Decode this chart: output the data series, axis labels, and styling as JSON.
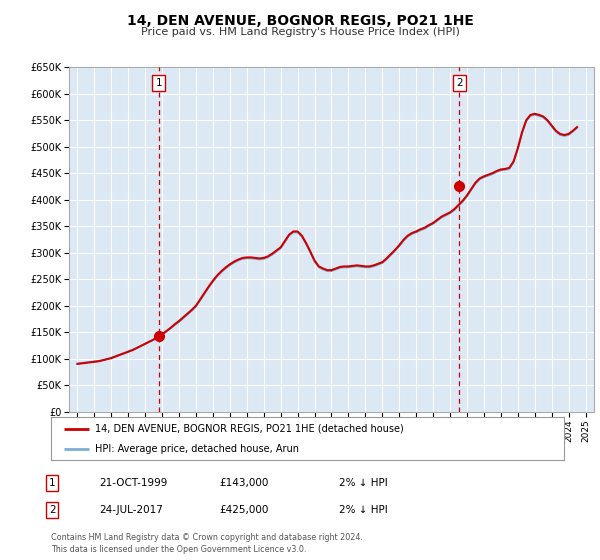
{
  "title": "14, DEN AVENUE, BOGNOR REGIS, PO21 1HE",
  "subtitle": "Price paid vs. HM Land Registry's House Price Index (HPI)",
  "ylim": [
    0,
    650000
  ],
  "xlim": [
    1994.5,
    2025.5
  ],
  "yticks": [
    0,
    50000,
    100000,
    150000,
    200000,
    250000,
    300000,
    350000,
    400000,
    450000,
    500000,
    550000,
    600000,
    650000
  ],
  "ytick_labels": [
    "£0",
    "£50K",
    "£100K",
    "£150K",
    "£200K",
    "£250K",
    "£300K",
    "£350K",
    "£400K",
    "£450K",
    "£500K",
    "£550K",
    "£600K",
    "£650K"
  ],
  "xticks": [
    1995,
    1996,
    1997,
    1998,
    1999,
    2000,
    2001,
    2002,
    2003,
    2004,
    2005,
    2006,
    2007,
    2008,
    2009,
    2010,
    2011,
    2012,
    2013,
    2014,
    2015,
    2016,
    2017,
    2018,
    2019,
    2020,
    2021,
    2022,
    2023,
    2024,
    2025
  ],
  "background_color": "#ffffff",
  "plot_bg_color": "#dce9f5",
  "grid_color": "#ffffff",
  "sale1": {
    "year": 1999.8,
    "price": 143000,
    "label": "1"
  },
  "sale2": {
    "year": 2017.55,
    "price": 425000,
    "label": "2"
  },
  "sale_color": "#cc0000",
  "sale_marker_size": 7,
  "hpi_color": "#7bafd4",
  "hpi_linewidth": 1.2,
  "price_color": "#cc0000",
  "price_linewidth": 1.5,
  "legend_label_price": "14, DEN AVENUE, BOGNOR REGIS, PO21 1HE (detached house)",
  "legend_label_hpi": "HPI: Average price, detached house, Arun",
  "annotation1_date": "21-OCT-1999",
  "annotation1_price": "£143,000",
  "annotation1_hpi": "2% ↓ HPI",
  "annotation2_date": "24-JUL-2017",
  "annotation2_price": "£425,000",
  "annotation2_hpi": "2% ↓ HPI",
  "footer": "Contains HM Land Registry data © Crown copyright and database right 2024.\nThis data is licensed under the Open Government Licence v3.0.",
  "hpi_data_x": [
    1995.0,
    1995.25,
    1995.5,
    1995.75,
    1996.0,
    1996.25,
    1996.5,
    1996.75,
    1997.0,
    1997.25,
    1997.5,
    1997.75,
    1998.0,
    1998.25,
    1998.5,
    1998.75,
    1999.0,
    1999.25,
    1999.5,
    1999.75,
    2000.0,
    2000.25,
    2000.5,
    2000.75,
    2001.0,
    2001.25,
    2001.5,
    2001.75,
    2002.0,
    2002.25,
    2002.5,
    2002.75,
    2003.0,
    2003.25,
    2003.5,
    2003.75,
    2004.0,
    2004.25,
    2004.5,
    2004.75,
    2005.0,
    2005.25,
    2005.5,
    2005.75,
    2006.0,
    2006.25,
    2006.5,
    2006.75,
    2007.0,
    2007.25,
    2007.5,
    2007.75,
    2008.0,
    2008.25,
    2008.5,
    2008.75,
    2009.0,
    2009.25,
    2009.5,
    2009.75,
    2010.0,
    2010.25,
    2010.5,
    2010.75,
    2011.0,
    2011.25,
    2011.5,
    2011.75,
    2012.0,
    2012.25,
    2012.5,
    2012.75,
    2013.0,
    2013.25,
    2013.5,
    2013.75,
    2014.0,
    2014.25,
    2014.5,
    2014.75,
    2015.0,
    2015.25,
    2015.5,
    2015.75,
    2016.0,
    2016.25,
    2016.5,
    2016.75,
    2017.0,
    2017.25,
    2017.5,
    2017.75,
    2018.0,
    2018.25,
    2018.5,
    2018.75,
    2019.0,
    2019.25,
    2019.5,
    2019.75,
    2020.0,
    2020.25,
    2020.5,
    2020.75,
    2021.0,
    2021.25,
    2021.5,
    2021.75,
    2022.0,
    2022.25,
    2022.5,
    2022.75,
    2023.0,
    2023.25,
    2023.5,
    2023.75,
    2024.0,
    2024.25,
    2024.5
  ],
  "hpi_data_y": [
    91000,
    92000,
    93000,
    94000,
    95000,
    96000,
    97000,
    99000,
    102000,
    105000,
    108000,
    111000,
    114000,
    117000,
    120000,
    124000,
    128000,
    132000,
    136000,
    140000,
    145000,
    151000,
    157000,
    163000,
    169000,
    176000,
    183000,
    190000,
    198000,
    210000,
    222000,
    234000,
    245000,
    255000,
    263000,
    270000,
    276000,
    281000,
    285000,
    288000,
    289000,
    289000,
    288000,
    287000,
    288000,
    291000,
    296000,
    302000,
    308000,
    320000,
    332000,
    338000,
    338000,
    330000,
    316000,
    300000,
    283000,
    272000,
    268000,
    265000,
    265000,
    268000,
    271000,
    272000,
    272000,
    273000,
    274000,
    273000,
    272000,
    272000,
    274000,
    277000,
    280000,
    287000,
    295000,
    303000,
    312000,
    322000,
    330000,
    335000,
    338000,
    342000,
    345000,
    350000,
    354000,
    360000,
    366000,
    370000,
    374000,
    380000,
    388000,
    396000,
    406000,
    418000,
    430000,
    438000,
    442000,
    445000,
    448000,
    452000,
    455000,
    456000,
    458000,
    470000,
    495000,
    525000,
    548000,
    558000,
    560000,
    558000,
    555000,
    548000,
    538000,
    528000,
    522000,
    520000,
    522000,
    528000,
    535000
  ],
  "price_data_x": [
    1995.0,
    1995.25,
    1995.5,
    1995.75,
    1996.0,
    1996.25,
    1996.5,
    1996.75,
    1997.0,
    1997.25,
    1997.5,
    1997.75,
    1998.0,
    1998.25,
    1998.5,
    1998.75,
    1999.0,
    1999.25,
    1999.5,
    1999.75,
    2000.0,
    2000.25,
    2000.5,
    2000.75,
    2001.0,
    2001.25,
    2001.5,
    2001.75,
    2002.0,
    2002.25,
    2002.5,
    2002.75,
    2003.0,
    2003.25,
    2003.5,
    2003.75,
    2004.0,
    2004.25,
    2004.5,
    2004.75,
    2005.0,
    2005.25,
    2005.5,
    2005.75,
    2006.0,
    2006.25,
    2006.5,
    2006.75,
    2007.0,
    2007.25,
    2007.5,
    2007.75,
    2008.0,
    2008.25,
    2008.5,
    2008.75,
    2009.0,
    2009.25,
    2009.5,
    2009.75,
    2010.0,
    2010.25,
    2010.5,
    2010.75,
    2011.0,
    2011.25,
    2011.5,
    2011.75,
    2012.0,
    2012.25,
    2012.5,
    2012.75,
    2013.0,
    2013.25,
    2013.5,
    2013.75,
    2014.0,
    2014.25,
    2014.5,
    2014.75,
    2015.0,
    2015.25,
    2015.5,
    2015.75,
    2016.0,
    2016.25,
    2016.5,
    2016.75,
    2017.0,
    2017.25,
    2017.5,
    2017.75,
    2018.0,
    2018.25,
    2018.5,
    2018.75,
    2019.0,
    2019.25,
    2019.5,
    2019.75,
    2020.0,
    2020.25,
    2020.5,
    2020.75,
    2021.0,
    2021.25,
    2021.5,
    2021.75,
    2022.0,
    2022.25,
    2022.5,
    2022.75,
    2023.0,
    2023.25,
    2023.5,
    2023.75,
    2024.0,
    2024.25,
    2024.5
  ],
  "price_data_y": [
    90000,
    91000,
    92000,
    93000,
    94000,
    95000,
    97000,
    99000,
    101000,
    104000,
    107000,
    110000,
    113000,
    116000,
    120000,
    124000,
    128000,
    132000,
    136000,
    141000,
    146000,
    152000,
    158000,
    165000,
    171000,
    178000,
    185000,
    192000,
    200000,
    212000,
    224000,
    236000,
    247000,
    257000,
    265000,
    272000,
    278000,
    283000,
    287000,
    290000,
    291000,
    291000,
    290000,
    289000,
    290000,
    293000,
    298000,
    304000,
    310000,
    322000,
    334000,
    340000,
    340000,
    332000,
    318000,
    302000,
    285000,
    274000,
    270000,
    267000,
    267000,
    270000,
    273000,
    274000,
    274000,
    275000,
    276000,
    275000,
    274000,
    274000,
    276000,
    279000,
    282000,
    289000,
    297000,
    305000,
    314000,
    324000,
    332000,
    337000,
    340000,
    344000,
    347000,
    352000,
    356000,
    362000,
    368000,
    372000,
    376000,
    382000,
    390000,
    398000,
    408000,
    420000,
    432000,
    440000,
    444000,
    447000,
    450000,
    454000,
    457000,
    458000,
    460000,
    472000,
    497000,
    527000,
    550000,
    560000,
    562000,
    560000,
    557000,
    550000,
    540000,
    530000,
    524000,
    522000,
    524000,
    530000,
    537000
  ]
}
